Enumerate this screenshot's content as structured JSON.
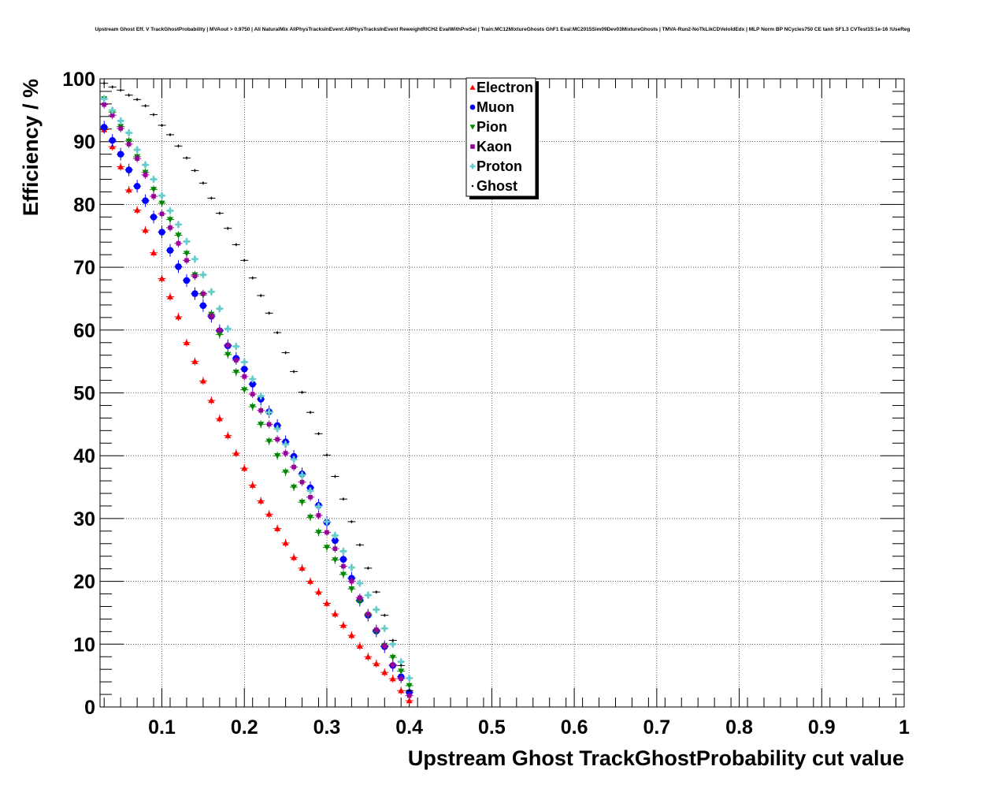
{
  "chart_data": {
    "type": "scatter",
    "title": "Upstream Ghost Eff. V TrackGhostProbability | MVAout > 0.9750 | All NaturalMix AllPhysTracksInEvent:AllPhysTracksInEvent ReweightRICH2 EvalWithPreSel | Train:MC12MixtureGhosts GhF1 Eval:MC2015Sim09Dev03MixtureGhosts | TMVA-Run2-NoTkLikCDVeloIdEdx | MLP Norm BP NCycles750 CE tanh SF1.3 CVTest15:1e-16 !UseReg",
    "xlabel": "Upstream Ghost TrackGhostProbability cut value",
    "ylabel": "Efficiency / %",
    "xlim": [
      0.025,
      1.0
    ],
    "ylim": [
      0,
      100
    ],
    "x_ticks": [
      "0.1",
      "0.2",
      "0.3",
      "0.4",
      "0.5",
      "0.6",
      "0.7",
      "0.8",
      "0.9",
      "1"
    ],
    "y_ticks": [
      "0",
      "10",
      "20",
      "30",
      "40",
      "50",
      "60",
      "70",
      "80",
      "90",
      "100"
    ],
    "grid": true,
    "legend_position": "top-center",
    "x": [
      0.03,
      0.04,
      0.05,
      0.06,
      0.07,
      0.08,
      0.09,
      0.1,
      0.11,
      0.12,
      0.13,
      0.14,
      0.15,
      0.16,
      0.17,
      0.18,
      0.19,
      0.2,
      0.21,
      0.22,
      0.23,
      0.24,
      0.25,
      0.26,
      0.27,
      0.28,
      0.29,
      0.3,
      0.31,
      0.32,
      0.33,
      0.34,
      0.35,
      0.36,
      0.37,
      0.38,
      0.39,
      0.4
    ],
    "series": [
      {
        "name": "Electron",
        "marker": "triangle-up",
        "color": "#ff0000",
        "values": [
          91.9,
          89.2,
          86.0,
          82.3,
          79.1,
          75.9,
          72.3,
          68.2,
          65.3,
          62.1,
          58.0,
          55.0,
          51.9,
          48.8,
          45.9,
          43.2,
          40.4,
          38.0,
          35.3,
          32.8,
          30.7,
          28.4,
          26.1,
          23.8,
          22.1,
          20.0,
          18.3,
          16.5,
          14.8,
          13.0,
          11.4,
          9.7,
          8.0,
          6.9,
          5.5,
          4.5,
          2.6,
          1.0
        ]
      },
      {
        "name": "Muon",
        "marker": "circle",
        "color": "#0000ff",
        "values": [
          92.3,
          90.2,
          88.0,
          85.5,
          82.9,
          80.6,
          78.0,
          75.6,
          72.7,
          70.1,
          67.9,
          65.8,
          63.9,
          62.2,
          59.9,
          57.5,
          55.5,
          53.8,
          51.4,
          49.0,
          47.0,
          44.8,
          42.2,
          39.9,
          37.1,
          34.9,
          32.1,
          29.4,
          26.5,
          23.5,
          20.5,
          17.0,
          14.6,
          12.1,
          9.6,
          6.6,
          4.8,
          2.3
        ]
      },
      {
        "name": "Pion",
        "marker": "triangle-down",
        "color": "#008800",
        "values": [
          96.8,
          94.7,
          92.4,
          90.1,
          87.6,
          85.1,
          82.4,
          80.2,
          77.6,
          75.1,
          72.2,
          68.8,
          65.6,
          62.5,
          59.3,
          56.1,
          53.3,
          50.5,
          47.8,
          45.0,
          42.3,
          40.0,
          37.4,
          35.0,
          32.6,
          30.2,
          27.8,
          25.4,
          23.4,
          21.1,
          18.8,
          16.8,
          14.6,
          12.0,
          9.8,
          7.9,
          5.7,
          3.4
        ]
      },
      {
        "name": "Kaon",
        "marker": "square",
        "color": "#990099",
        "values": [
          95.9,
          94.2,
          92.1,
          89.6,
          87.3,
          84.7,
          81.3,
          78.5,
          76.3,
          73.8,
          71.1,
          68.6,
          65.8,
          62.2,
          60.0,
          57.6,
          55.2,
          52.6,
          49.8,
          47.2,
          45.0,
          42.6,
          40.4,
          38.2,
          35.8,
          33.4,
          30.5,
          27.8,
          25.2,
          22.4,
          20.0,
          17.4,
          14.8,
          12.3,
          9.7,
          6.7,
          4.5,
          1.8
        ]
      },
      {
        "name": "Proton",
        "marker": "cross",
        "color": "#66cccc",
        "values": [
          96.8,
          95.0,
          93.3,
          91.4,
          88.7,
          86.3,
          84.0,
          81.4,
          79.0,
          76.8,
          74.1,
          71.3,
          68.8,
          66.1,
          63.4,
          60.2,
          57.4,
          54.9,
          52.2,
          49.5,
          46.9,
          44.3,
          41.8,
          39.4,
          36.9,
          34.4,
          31.9,
          29.5,
          27.3,
          24.8,
          22.2,
          19.7,
          17.8,
          15.5,
          12.5,
          10.0,
          7.2,
          4.6
        ]
      },
      {
        "name": "Ghost",
        "marker": "star",
        "color": "#000000",
        "values": [
          99.3,
          98.7,
          98.2,
          97.4,
          96.7,
          95.7,
          94.3,
          92.6,
          91.1,
          89.3,
          87.4,
          85.4,
          83.4,
          81.0,
          78.6,
          76.2,
          73.6,
          71.1,
          68.3,
          65.5,
          62.7,
          59.6,
          56.4,
          53.4,
          50.1,
          46.9,
          43.5,
          40.1,
          36.7,
          33.1,
          29.5,
          25.8,
          22.1,
          18.3,
          14.6,
          10.6,
          6.6,
          2.6
        ]
      }
    ]
  }
}
